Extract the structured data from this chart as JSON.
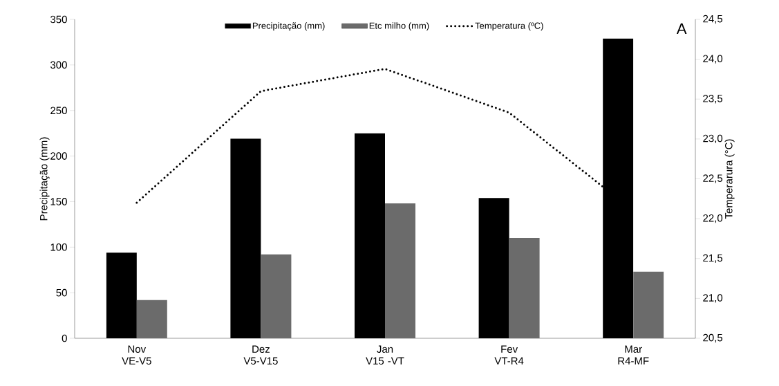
{
  "chart_data": {
    "type": "bar",
    "categories": [
      "Nov VE-V5",
      "Dez V5-V15",
      "Jan V15 -VT",
      "Fev VT-R4",
      "Mar R4-MF"
    ],
    "series": [
      {
        "name": "Precipitação (mm)",
        "color": "#000000",
        "values": [
          94,
          219,
          225,
          154,
          329
        ]
      },
      {
        "name": "Etc milho (mm)",
        "color": "#6b6b6b",
        "values": [
          42,
          92,
          148,
          110,
          73
        ]
      },
      {
        "name": "Temperatura (ºC)",
        "type": "line",
        "axis": "y2",
        "color": "#000000",
        "line_style": "dotted",
        "marker": "none",
        "values": [
          22.2,
          23.6,
          23.88,
          23.33,
          22.1
        ]
      }
    ],
    "ylabel": "Precipitação (mm)",
    "y2label": "Temperarura (°C)",
    "ylim": [
      0,
      350
    ],
    "yticks": [
      0,
      50,
      100,
      150,
      200,
      250,
      300,
      350
    ],
    "y2lim": [
      20.5,
      24.5
    ],
    "y2ticks": [
      {
        "value": 20.5,
        "label": "20,5"
      },
      {
        "value": 21,
        "label": "21,0"
      },
      {
        "value": 21.5,
        "label": "21,5"
      },
      {
        "value": 22,
        "label": "22,0"
      },
      {
        "value": 22.5,
        "label": "22,5"
      },
      {
        "value": 23,
        "label": "23,0"
      },
      {
        "value": 23.5,
        "label": "23,5"
      },
      {
        "value": 24,
        "label": "24,0"
      },
      {
        "value": 24.5,
        "label": "24,5"
      }
    ],
    "annotations": [
      "A"
    ],
    "legend": "top",
    "grid": false
  }
}
